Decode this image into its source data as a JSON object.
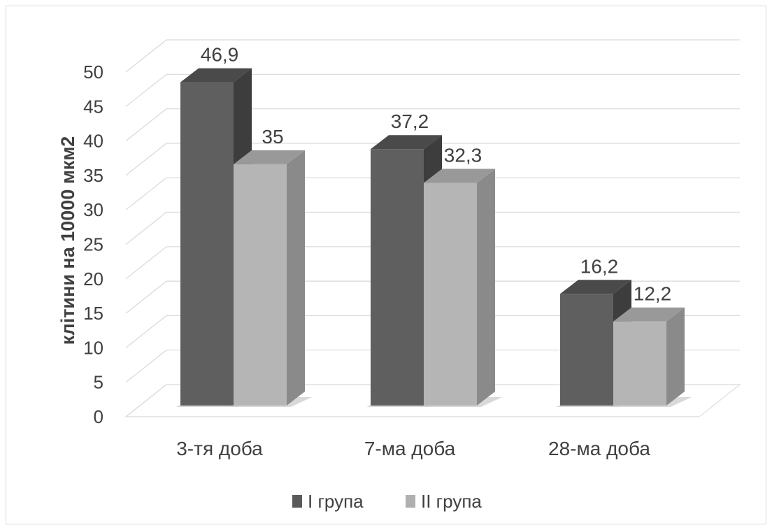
{
  "chart_data": {
    "type": "bar",
    "categories": [
      "3-тя доба",
      "7-ма доба",
      "28-ма доба"
    ],
    "series": [
      {
        "name": "I група",
        "values": [
          46.9,
          37.2,
          16.2
        ],
        "labels": [
          "46,9",
          "37,2",
          "16,2"
        ]
      },
      {
        "name": "II група",
        "values": [
          35,
          32.3,
          12.2
        ],
        "labels": [
          "35",
          "32,3",
          "12,2"
        ]
      }
    ],
    "title": "",
    "xlabel": "",
    "ylabel": "клітини на 10000 мкм2",
    "ylim": [
      0,
      50
    ],
    "yticks": [
      0,
      5,
      10,
      15,
      20,
      25,
      30,
      35,
      40,
      45,
      50
    ],
    "grid": true,
    "legend_position": "bottom",
    "three_d": true,
    "colors": {
      "I група": {
        "front": "#5f5f5f",
        "top": "#4a4a4a",
        "side": "#3d3d3d",
        "legend": "#5a5a5a"
      },
      "II група": {
        "front": "#b5b5b5",
        "top": "#999999",
        "side": "#8a8a8a",
        "legend": "#b0b0b0"
      }
    }
  }
}
